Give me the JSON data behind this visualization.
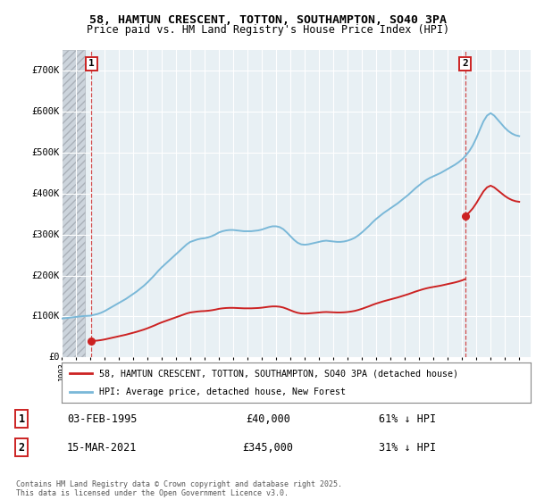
{
  "title_line1": "58, HAMTUN CRESCENT, TOTTON, SOUTHAMPTON, SO40 3PA",
  "title_line2": "Price paid vs. HM Land Registry's House Price Index (HPI)",
  "background_color": "#ffffff",
  "plot_bg_color": "#e8f0f4",
  "legend_line1": "58, HAMTUN CRESCENT, TOTTON, SOUTHAMPTON, SO40 3PA (detached house)",
  "legend_line2": "HPI: Average price, detached house, New Forest",
  "transaction1_date": "03-FEB-1995",
  "transaction1_price": "£40,000",
  "transaction1_hpi": "61% ↓ HPI",
  "transaction2_date": "15-MAR-2021",
  "transaction2_price": "£345,000",
  "transaction2_hpi": "31% ↓ HPI",
  "footer": "Contains HM Land Registry data © Crown copyright and database right 2025.\nThis data is licensed under the Open Government Licence v3.0.",
  "red_color": "#cc2222",
  "blue_color": "#7ab8d8",
  "ylim": [
    0,
    750000
  ],
  "yticks": [
    0,
    100000,
    200000,
    300000,
    400000,
    500000,
    600000,
    700000
  ],
  "ytick_labels": [
    "£0",
    "£100K",
    "£200K",
    "£300K",
    "£400K",
    "£500K",
    "£600K",
    "£700K"
  ],
  "xlim_start": 1993.0,
  "xlim_end": 2025.8,
  "t1_x": 1995.09,
  "t1_y": 40000,
  "t2_x": 2021.21,
  "t2_y": 345000,
  "hpi_x": [
    1993.0,
    1993.25,
    1993.5,
    1993.75,
    1994.0,
    1994.25,
    1994.5,
    1994.75,
    1995.0,
    1995.25,
    1995.5,
    1995.75,
    1996.0,
    1996.25,
    1996.5,
    1996.75,
    1997.0,
    1997.25,
    1997.5,
    1997.75,
    1998.0,
    1998.25,
    1998.5,
    1998.75,
    1999.0,
    1999.25,
    1999.5,
    1999.75,
    2000.0,
    2000.25,
    2000.5,
    2000.75,
    2001.0,
    2001.25,
    2001.5,
    2001.75,
    2002.0,
    2002.25,
    2002.5,
    2002.75,
    2003.0,
    2003.25,
    2003.5,
    2003.75,
    2004.0,
    2004.25,
    2004.5,
    2004.75,
    2005.0,
    2005.25,
    2005.5,
    2005.75,
    2006.0,
    2006.25,
    2006.5,
    2006.75,
    2007.0,
    2007.25,
    2007.5,
    2007.75,
    2008.0,
    2008.25,
    2008.5,
    2008.75,
    2009.0,
    2009.25,
    2009.5,
    2009.75,
    2010.0,
    2010.25,
    2010.5,
    2010.75,
    2011.0,
    2011.25,
    2011.5,
    2011.75,
    2012.0,
    2012.25,
    2012.5,
    2012.75,
    2013.0,
    2013.25,
    2013.5,
    2013.75,
    2014.0,
    2014.25,
    2014.5,
    2014.75,
    2015.0,
    2015.25,
    2015.5,
    2015.75,
    2016.0,
    2016.25,
    2016.5,
    2016.75,
    2017.0,
    2017.25,
    2017.5,
    2017.75,
    2018.0,
    2018.25,
    2018.5,
    2018.75,
    2019.0,
    2019.25,
    2019.5,
    2019.75,
    2020.0,
    2020.25,
    2020.5,
    2020.75,
    2021.0,
    2021.25,
    2021.5,
    2021.75,
    2022.0,
    2022.25,
    2022.5,
    2022.75,
    2023.0,
    2023.25,
    2023.5,
    2023.75,
    2024.0,
    2024.25,
    2024.5,
    2024.75,
    2025.0
  ],
  "hpi_y": [
    95000,
    96000,
    97000,
    98000,
    99000,
    100000,
    101000,
    101500,
    102000,
    104000,
    106000,
    109000,
    113000,
    118000,
    123000,
    128000,
    133000,
    138000,
    143000,
    149000,
    155000,
    161000,
    168000,
    175000,
    183000,
    192000,
    201000,
    211000,
    220000,
    228000,
    236000,
    244000,
    252000,
    260000,
    268000,
    276000,
    282000,
    285000,
    288000,
    290000,
    291000,
    293000,
    296000,
    300000,
    305000,
    308000,
    310000,
    311000,
    311000,
    310000,
    309000,
    308000,
    308000,
    308000,
    309000,
    310000,
    312000,
    315000,
    318000,
    320000,
    320000,
    318000,
    313000,
    305000,
    296000,
    287000,
    280000,
    276000,
    275000,
    276000,
    278000,
    280000,
    282000,
    284000,
    285000,
    284000,
    283000,
    282000,
    282000,
    283000,
    285000,
    288000,
    292000,
    298000,
    305000,
    313000,
    321000,
    330000,
    338000,
    345000,
    352000,
    358000,
    364000,
    370000,
    376000,
    383000,
    390000,
    397000,
    405000,
    413000,
    420000,
    427000,
    433000,
    438000,
    442000,
    446000,
    450000,
    455000,
    460000,
    465000,
    470000,
    476000,
    483000,
    492000,
    503000,
    517000,
    535000,
    556000,
    576000,
    590000,
    596000,
    590000,
    580000,
    570000,
    560000,
    552000,
    546000,
    542000,
    540000
  ]
}
